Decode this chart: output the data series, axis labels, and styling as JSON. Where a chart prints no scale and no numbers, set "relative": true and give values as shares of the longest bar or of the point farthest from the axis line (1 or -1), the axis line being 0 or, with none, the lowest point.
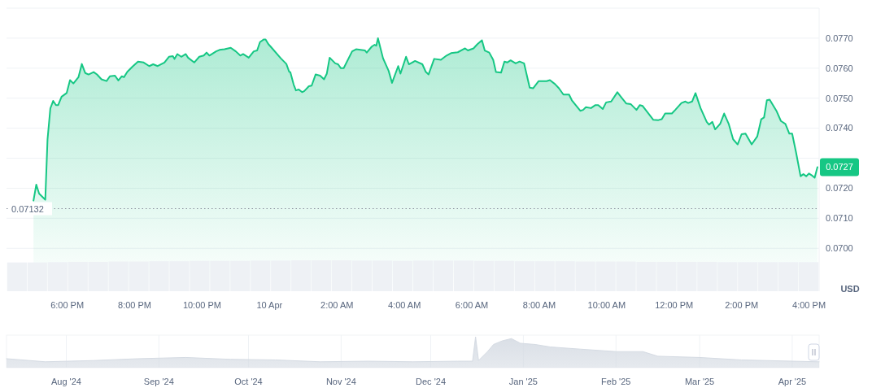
{
  "chart_data": [
    {
      "type": "area",
      "ylabel": "USD",
      "xlim": [
        "2025-04-09T16:12",
        "2025-04-10T16:18"
      ],
      "ylim": [
        0.06857,
        0.078
      ],
      "xticks": [
        {
          "value": "2025-04-09T18:00",
          "label": "6:00 PM"
        },
        {
          "value": "2025-04-09T20:00",
          "label": "8:00 PM"
        },
        {
          "value": "2025-04-09T22:00",
          "label": "10:00 PM"
        },
        {
          "value": "2025-04-10T00:00",
          "label": "10 Apr"
        },
        {
          "value": "2025-04-10T02:00",
          "label": "2:00 AM"
        },
        {
          "value": "2025-04-10T04:00",
          "label": "4:00 AM"
        },
        {
          "value": "2025-04-10T06:00",
          "label": "6:00 AM"
        },
        {
          "value": "2025-04-10T08:00",
          "label": "8:00 AM"
        },
        {
          "value": "2025-04-10T10:00",
          "label": "10:00 AM"
        },
        {
          "value": "2025-04-10T12:00",
          "label": "12:00 PM"
        },
        {
          "value": "2025-04-10T14:00",
          "label": "2:00 PM"
        },
        {
          "value": "2025-04-10T16:00",
          "label": "4:00 PM"
        }
      ],
      "yticks": [
        {
          "value": 0.07,
          "label": "0.0700"
        },
        {
          "value": 0.071,
          "label": "0.0710"
        },
        {
          "value": 0.072,
          "label": "0.0720"
        },
        {
          "value": 0.073,
          "label": null
        },
        {
          "value": 0.074,
          "label": "0.0740"
        },
        {
          "value": 0.075,
          "label": "0.0750"
        },
        {
          "value": 0.076,
          "label": "0.0760"
        },
        {
          "value": 0.077,
          "label": "0.0770"
        }
      ],
      "grid": "y",
      "ref_lines": [
        {
          "axis": "y",
          "value": 0.07132,
          "label": "0.07132",
          "line_style": "dotted",
          "color": "#8a919e"
        }
      ],
      "annotations": [
        {
          "text": "0.0727",
          "x": "2025-04-10T16:15",
          "y": 0.0727
        }
      ],
      "series": [
        {
          "color": "#16c784",
          "x": [
            "2025-04-09T17:00",
            "2025-04-09T17:05",
            "2025-04-09T17:10",
            "2025-04-09T17:21",
            "2025-04-09T17:25",
            "2025-04-09T17:30",
            "2025-04-09T17:35",
            "2025-04-09T17:40",
            "2025-04-09T17:44",
            "2025-04-09T17:50",
            "2025-04-09T17:59",
            "2025-04-09T18:05",
            "2025-04-09T18:11",
            "2025-04-09T18:20",
            "2025-04-09T18:26",
            "2025-04-09T18:32",
            "2025-04-09T18:38",
            "2025-04-09T18:47",
            "2025-04-09T18:53",
            "2025-04-09T19:01",
            "2025-04-09T19:10",
            "2025-04-09T19:16",
            "2025-04-09T19:25",
            "2025-04-09T19:31",
            "2025-04-09T19:37",
            "2025-04-09T19:41",
            "2025-04-09T19:47",
            "2025-04-09T19:56",
            "2025-04-09T20:06",
            "2025-04-09T20:16",
            "2025-04-09T20:26",
            "2025-04-09T20:33",
            "2025-04-09T20:41",
            "2025-04-09T20:53",
            "2025-04-09T21:01",
            "2025-04-09T21:08",
            "2025-04-09T21:11",
            "2025-04-09T21:16",
            "2025-04-09T21:23",
            "2025-04-09T21:31",
            "2025-04-09T21:35",
            "2025-04-09T21:46",
            "2025-04-09T21:55",
            "2025-04-09T22:03",
            "2025-04-09T22:08",
            "2025-04-09T22:13",
            "2025-04-09T22:25",
            "2025-04-09T22:31",
            "2025-04-09T22:40",
            "2025-04-09T22:51",
            "2025-04-09T23:00",
            "2025-04-09T23:08",
            "2025-04-09T23:13",
            "2025-04-09T23:23",
            "2025-04-09T23:32",
            "2025-04-09T23:38",
            "2025-04-09T23:43",
            "2025-04-09T23:50",
            "2025-04-09T23:53",
            "2025-04-09T23:58",
            "2025-04-10T00:02",
            "2025-04-10T00:20",
            "2025-04-10T00:30",
            "2025-04-10T00:35",
            "2025-04-10T00:37",
            "2025-04-10T00:43",
            "2025-04-10T00:47",
            "2025-04-10T00:52",
            "2025-04-10T00:58",
            "2025-04-10T01:02",
            "2025-04-10T01:10",
            "2025-04-10T01:15",
            "2025-04-10T01:22",
            "2025-04-10T01:30",
            "2025-04-10T01:37",
            "2025-04-10T01:42",
            "2025-04-10T01:47",
            "2025-04-10T01:57",
            "2025-04-10T02:02",
            "2025-04-10T02:07",
            "2025-04-10T02:12",
            "2025-04-10T02:27",
            "2025-04-10T02:34",
            "2025-04-10T02:50",
            "2025-04-10T02:53",
            "2025-04-10T03:02",
            "2025-04-10T03:07",
            "2025-04-10T03:10",
            "2025-04-10T03:13",
            "2025-04-10T03:22",
            "2025-04-10T03:32",
            "2025-04-10T03:38",
            "2025-04-10T03:49",
            "2025-04-10T03:53",
            "2025-04-10T04:03",
            "2025-04-10T04:08",
            "2025-04-10T04:19",
            "2025-04-10T04:32",
            "2025-04-10T04:38",
            "2025-04-10T04:43",
            "2025-04-10T04:53",
            "2025-04-10T05:05",
            "2025-04-10T05:15",
            "2025-04-10T05:23",
            "2025-04-10T05:35",
            "2025-04-10T05:48",
            "2025-04-10T05:53",
            "2025-04-10T06:03",
            "2025-04-10T06:10",
            "2025-04-10T06:18",
            "2025-04-10T06:23",
            "2025-04-10T06:31",
            "2025-04-10T06:38",
            "2025-04-10T06:43",
            "2025-04-10T06:52",
            "2025-04-10T06:58",
            "2025-04-10T07:03",
            "2025-04-10T07:09",
            "2025-04-10T07:18",
            "2025-04-10T07:25",
            "2025-04-10T07:33",
            "2025-04-10T07:43",
            "2025-04-10T07:49",
            "2025-04-10T07:59",
            "2025-04-10T08:13",
            "2025-04-10T08:19",
            "2025-04-10T08:28",
            "2025-04-10T08:35",
            "2025-04-10T08:43",
            "2025-04-10T08:53",
            "2025-04-10T08:58",
            "2025-04-10T09:13",
            "2025-04-10T09:18",
            "2025-04-10T09:23",
            "2025-04-10T09:32",
            "2025-04-10T09:40",
            "2025-04-10T09:45",
            "2025-04-10T09:53",
            "2025-04-10T09:59",
            "2025-04-10T10:08",
            "2025-04-10T10:19",
            "2025-04-10T10:28",
            "2025-04-10T10:35",
            "2025-04-10T10:43",
            "2025-04-10T10:53",
            "2025-04-10T10:59",
            "2025-04-10T11:04",
            "2025-04-10T11:13",
            "2025-04-10T11:23",
            "2025-04-10T11:32",
            "2025-04-10T11:38",
            "2025-04-10T11:44",
            "2025-04-10T11:56",
            "2025-04-10T12:02",
            "2025-04-10T12:13",
            "2025-04-10T12:20",
            "2025-04-10T12:25",
            "2025-04-10T12:32",
            "2025-04-10T12:38",
            "2025-04-10T12:47",
            "2025-04-10T12:58",
            "2025-04-10T13:02",
            "2025-04-10T13:08",
            "2025-04-10T13:13",
            "2025-04-10T13:22",
            "2025-04-10T13:29",
            "2025-04-10T13:37",
            "2025-04-10T13:45",
            "2025-04-10T13:53",
            "2025-04-10T14:00",
            "2025-04-10T14:07",
            "2025-04-10T14:18",
            "2025-04-10T14:28",
            "2025-04-10T14:35",
            "2025-04-10T14:40",
            "2025-04-10T14:45",
            "2025-04-10T14:50",
            "2025-04-10T15:02",
            "2025-04-10T15:10",
            "2025-04-10T15:18",
            "2025-04-10T15:25",
            "2025-04-10T15:30",
            "2025-04-10T15:37",
            "2025-04-10T15:45",
            "2025-04-10T15:50",
            "2025-04-10T15:55",
            "2025-04-10T16:00",
            "2025-04-10T16:05",
            "2025-04-10T16:10",
            "2025-04-10T16:15"
          ],
          "values": [
            0.07159,
            0.07212,
            0.07182,
            0.07162,
            0.07363,
            0.07466,
            0.07491,
            0.07477,
            0.07477,
            0.07505,
            0.07517,
            0.0756,
            0.07549,
            0.0757,
            0.07614,
            0.07584,
            0.07579,
            0.07587,
            0.07579,
            0.07563,
            0.07557,
            0.07573,
            0.07575,
            0.07559,
            0.07573,
            0.0757,
            0.07588,
            0.07605,
            0.07622,
            0.07619,
            0.07607,
            0.07613,
            0.07607,
            0.07619,
            0.07638,
            0.0764,
            0.07631,
            0.07647,
            0.07638,
            0.07647,
            0.07635,
            0.07619,
            0.07638,
            0.07642,
            0.07652,
            0.07642,
            0.07656,
            0.07661,
            0.07663,
            0.07668,
            0.07656,
            0.07642,
            0.07647,
            0.07635,
            0.07656,
            0.07659,
            0.07687,
            0.07696,
            0.07696,
            0.0768,
            0.07672,
            0.07633,
            0.07614,
            0.07588,
            0.07587,
            0.07545,
            0.07526,
            0.07529,
            0.0752,
            0.07524,
            0.0754,
            0.07542,
            0.07579,
            0.07575,
            0.07563,
            0.07582,
            0.07635,
            0.07616,
            0.07613,
            0.076,
            0.076,
            0.07656,
            0.07663,
            0.07659,
            0.07652,
            0.07672,
            0.07678,
            0.07675,
            0.077,
            0.07633,
            0.07591,
            0.07551,
            0.07607,
            0.07582,
            0.07638,
            0.07613,
            0.07624,
            0.07613,
            0.07588,
            0.07579,
            0.07631,
            0.07628,
            0.07642,
            0.0765,
            0.07653,
            0.07666,
            0.07659,
            0.07666,
            0.0768,
            0.07693,
            0.07659,
            0.07652,
            0.07628,
            0.07587,
            0.07585,
            0.07622,
            0.07619,
            0.07626,
            0.07616,
            0.07622,
            0.07616,
            0.07535,
            0.07533,
            0.07557,
            0.07557,
            0.0756,
            0.07547,
            0.07533,
            0.07512,
            0.07512,
            0.07493,
            0.07458,
            0.07461,
            0.0747,
            0.07467,
            0.07477,
            0.07477,
            0.07464,
            0.07486,
            0.07489,
            0.0752,
            0.07498,
            0.07482,
            0.0748,
            0.07461,
            0.07477,
            0.07474,
            0.07452,
            0.07428,
            0.07427,
            0.0743,
            0.07449,
            0.07449,
            0.07461,
            0.07484,
            0.07489,
            0.07484,
            0.07489,
            0.07517,
            0.07467,
            0.07421,
            0.07412,
            0.07421,
            0.07396,
            0.07415,
            0.07449,
            0.07415,
            0.07363,
            0.07346,
            0.0738,
            0.07382,
            0.07346,
            0.07373,
            0.0743,
            0.07436,
            0.07493,
            0.07495,
            0.07458,
            0.07424,
            0.07414,
            0.07382,
            0.07382,
            0.07319,
            0.0724,
            0.07247,
            0.0724,
            0.07249,
            0.07243,
            0.07235,
            0.0727
          ]
        }
      ]
    },
    {
      "type": "bar",
      "relative": true,
      "categories": [
        null,
        null,
        null,
        null,
        null,
        null,
        null,
        null,
        null,
        null,
        null,
        null,
        null,
        null,
        null,
        null,
        null,
        null,
        null,
        null,
        null,
        null,
        null,
        null,
        null,
        null,
        null,
        null,
        null,
        null,
        null,
        null,
        null,
        null,
        null,
        null,
        null,
        null,
        null,
        null
      ],
      "series": [
        {
          "color": "#eef1f5",
          "values": [
            0.93,
            0.93,
            0.94,
            0.95,
            0.95,
            0.96,
            0.96,
            0.97,
            0.97,
            0.98,
            0.98,
            0.98,
            0.99,
            0.99,
            1,
            1,
            1,
            0.99,
            0.99,
            0.98,
            0.99,
            0.99,
            0.99,
            0.98,
            0.98,
            0.97,
            0.97,
            0.97,
            0.96,
            0.96,
            0.96,
            0.95,
            0.95,
            0.95,
            0.95,
            0.94,
            0.94,
            0.94,
            0.94,
            0.94
          ]
        }
      ]
    },
    {
      "type": "area",
      "relative": true,
      "grid": "x",
      "xlim": [
        "2024-07-12",
        "2025-04-10"
      ],
      "xticks": [
        {
          "value": "2024-08-01",
          "label": "Aug '24"
        },
        {
          "value": "2024-09-01",
          "label": "Sep '24"
        },
        {
          "value": "2024-10-01",
          "label": "Oct '24"
        },
        {
          "value": "2024-11-01",
          "label": "Nov '24"
        },
        {
          "value": "2024-12-01",
          "label": "Dec '24"
        },
        {
          "value": "2025-01-01",
          "label": "Jan '25"
        },
        {
          "value": "2025-02-01",
          "label": "Feb '25"
        },
        {
          "value": "2025-03-01",
          "label": "Mar '25"
        },
        {
          "value": "2025-04-01",
          "label": "Apr '25"
        }
      ],
      "series": [
        {
          "color": "#d5dbe3",
          "x": [
            "2024-07-12",
            "2024-07-25",
            "2024-08-10",
            "2024-08-25",
            "2024-09-10",
            "2024-09-25",
            "2024-10-10",
            "2024-10-25",
            "2024-11-10",
            "2024-11-25",
            "2024-12-10",
            "2024-12-15",
            "2024-12-16",
            "2024-12-17",
            "2024-12-20",
            "2024-12-22",
            "2024-12-25",
            "2024-12-28",
            "2024-12-31",
            "2025-01-05",
            "2025-01-10",
            "2025-01-20",
            "2025-02-01",
            "2025-02-10",
            "2025-02-15",
            "2025-03-01",
            "2025-03-15",
            "2025-04-01",
            "2025-04-10"
          ],
          "values": [
            0.29,
            0.19,
            0.23,
            0.29,
            0.33,
            0.27,
            0.25,
            0.19,
            0.21,
            0.19,
            0.21,
            0.21,
            1,
            0.23,
            0.52,
            0.75,
            0.87,
            0.94,
            0.79,
            0.75,
            0.67,
            0.6,
            0.52,
            0.52,
            0.37,
            0.33,
            0.25,
            0.21,
            0.19
          ]
        }
      ]
    }
  ]
}
